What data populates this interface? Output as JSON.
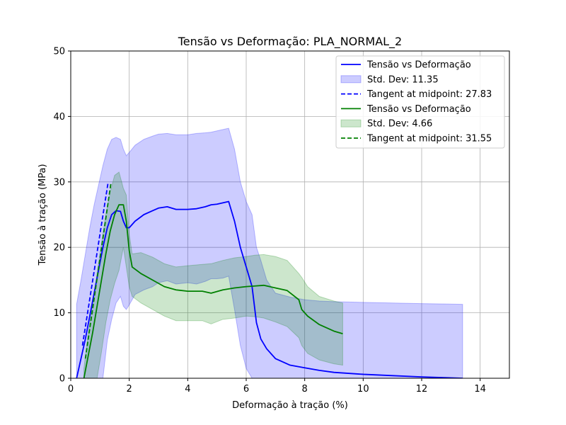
{
  "chart_data": {
    "type": "line",
    "title": "Tensão vs Deformação: PLA_NORMAL_2",
    "xlabel": "Deformação à tração (%)",
    "ylabel": "Tensão à tração (MPa)",
    "xlim": [
      0,
      15
    ],
    "ylim": [
      0,
      50
    ],
    "xticks": [
      0,
      2,
      4,
      6,
      8,
      10,
      12,
      14
    ],
    "yticks": [
      0,
      10,
      20,
      30,
      40,
      50
    ],
    "grid": true,
    "legend_position": "top-right",
    "series": [
      {
        "name": "Tensão vs Deformação",
        "kind": "line",
        "color": "#0000ff",
        "x": [
          0.2,
          0.35,
          0.5,
          0.65,
          0.8,
          0.95,
          1.1,
          1.25,
          1.4,
          1.55,
          1.7,
          1.8,
          1.9,
          2.0,
          2.2,
          2.5,
          2.8,
          3.0,
          3.3,
          3.6,
          4.0,
          4.3,
          4.6,
          4.8,
          5.0,
          5.2,
          5.4,
          5.6,
          5.8,
          6.0,
          6.2,
          6.35,
          6.5,
          6.7,
          7.0,
          7.5,
          8.0,
          8.5,
          9.0,
          10.0,
          11.0,
          12.0,
          13.4
        ],
        "y": [
          0,
          3,
          6,
          9.5,
          13,
          16.5,
          20,
          23,
          25,
          25.6,
          25.5,
          24,
          23,
          23,
          24,
          25,
          25.6,
          26,
          26.2,
          25.8,
          25.8,
          25.9,
          26.2,
          26.5,
          26.6,
          26.8,
          27,
          24,
          20,
          17,
          14,
          8.5,
          6,
          4.5,
          3,
          2,
          1.6,
          1.2,
          0.9,
          0.6,
          0.4,
          0.2,
          0
        ]
      },
      {
        "name": "Std. Dev: 11.35",
        "kind": "band",
        "color": "#0000ff",
        "x": [
          0.2,
          0.35,
          0.5,
          0.65,
          0.8,
          0.95,
          1.1,
          1.25,
          1.4,
          1.55,
          1.7,
          1.8,
          1.9,
          2.0,
          2.2,
          2.5,
          2.8,
          3.0,
          3.3,
          3.6,
          4.0,
          4.3,
          4.6,
          4.8,
          5.0,
          5.2,
          5.4,
          5.6,
          5.8,
          6.0,
          6.2,
          6.35,
          6.5,
          6.7,
          7.0,
          7.5,
          8.0,
          8.5,
          9.0,
          10.0,
          11.0,
          12.0,
          13.4
        ],
        "lower": [
          0,
          0,
          0,
          0,
          0,
          0,
          0,
          5.8,
          9,
          11.5,
          12.5,
          11,
          10.5,
          11.2,
          12.8,
          13.5,
          14,
          14.6,
          14.9,
          14.4,
          14.6,
          14.4,
          14.8,
          15.2,
          15.2,
          15.3,
          15.6,
          10.5,
          5,
          1.5,
          0,
          0,
          0,
          0,
          0,
          0,
          0,
          0,
          0,
          0,
          0,
          0,
          0
        ],
        "upper": [
          11.3,
          15,
          19,
          23,
          26.5,
          29.5,
          32.5,
          35,
          36.5,
          36.8,
          36.5,
          35,
          34,
          34.5,
          35.6,
          36.5,
          37,
          37.3,
          37.4,
          37.2,
          37.2,
          37.4,
          37.5,
          37.6,
          37.8,
          38,
          38.2,
          35,
          30,
          27,
          25,
          20,
          18,
          15,
          13,
          12.4,
          12,
          11.8,
          11.7,
          11.6,
          11.5,
          11.4,
          11.3
        ]
      },
      {
        "name": "Tangent at midpoint: 27.83",
        "kind": "dashed",
        "color": "#0000ff",
        "x": [
          0.4,
          1.28
        ],
        "y": [
          5,
          30
        ]
      },
      {
        "name": "Tensão vs Deformação",
        "kind": "line",
        "color": "#008000",
        "x": [
          0.45,
          0.6,
          0.75,
          0.9,
          1.05,
          1.2,
          1.35,
          1.5,
          1.65,
          1.8,
          1.9,
          2.0,
          2.1,
          2.4,
          2.8,
          3.2,
          3.6,
          4.0,
          4.5,
          4.8,
          5.2,
          5.6,
          6.0,
          6.3,
          6.6,
          7.0,
          7.4,
          7.8,
          7.9,
          8.1,
          8.5,
          9.0,
          9.3
        ],
        "y": [
          0,
          3.5,
          7,
          11,
          15,
          19,
          22.5,
          25,
          26.5,
          26.5,
          24,
          19.5,
          17,
          16,
          15,
          14,
          13.5,
          13.3,
          13.3,
          13,
          13.5,
          13.8,
          14,
          14.1,
          14.2,
          13.8,
          13.4,
          12,
          10.5,
          9.5,
          8.2,
          7.2,
          6.8
        ]
      },
      {
        "name": "Std. Dev: 4.66",
        "kind": "band",
        "color": "#008000",
        "x": [
          0.45,
          0.6,
          0.75,
          0.9,
          1.05,
          1.2,
          1.35,
          1.5,
          1.65,
          1.8,
          1.9,
          2.0,
          2.1,
          2.4,
          2.8,
          3.2,
          3.6,
          4.0,
          4.5,
          4.8,
          5.2,
          5.6,
          6.0,
          6.3,
          6.6,
          7.0,
          7.4,
          7.8,
          7.9,
          8.1,
          8.5,
          9.0,
          9.3
        ],
        "lower": [
          0,
          0,
          0,
          0,
          4,
          8.5,
          12,
          14.5,
          16.5,
          20,
          17,
          14,
          12.5,
          11.5,
          10.5,
          9.5,
          8.8,
          8.8,
          8.8,
          8.3,
          9,
          9.2,
          9.5,
          9.4,
          9.2,
          8.6,
          7.9,
          6.2,
          5,
          3.8,
          2.8,
          2.2,
          2
        ],
        "upper": [
          1.5,
          7,
          11.5,
          16,
          20.5,
          25,
          28.5,
          31,
          31.5,
          29,
          28,
          22,
          19,
          19.2,
          18.5,
          17.5,
          17,
          17.2,
          17.4,
          17.5,
          18,
          18.4,
          18.6,
          18.8,
          18.9,
          18.6,
          18,
          16,
          15.4,
          14,
          12.5,
          11.8,
          11.5
        ]
      },
      {
        "name": "Tangent at midpoint: 31.55",
        "kind": "dashed",
        "color": "#008000",
        "x": [
          0.5,
          1.38
        ],
        "y": [
          3,
          30
        ]
      }
    ]
  }
}
